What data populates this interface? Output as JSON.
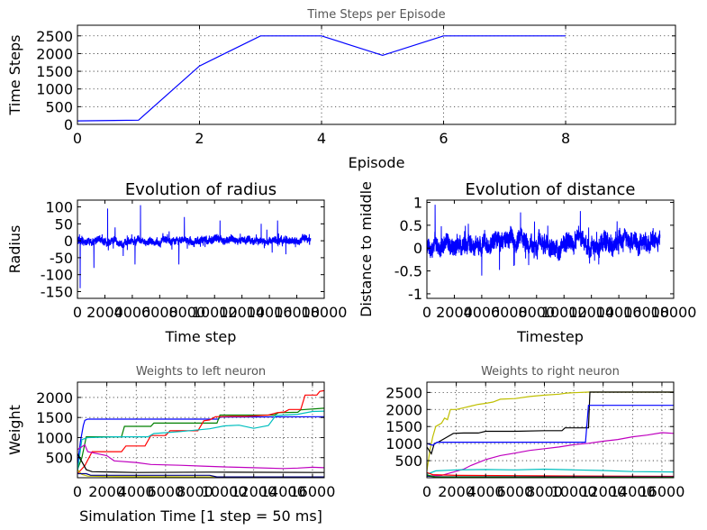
{
  "chart_data": [
    {
      "type": "line",
      "title": "Time Steps per Episode",
      "title_style": "small",
      "xlabel": "Episode",
      "ylabel": "Time Steps",
      "xlim": [
        0,
        9.8
      ],
      "ylim": [
        0,
        2800
      ],
      "xticks": [
        0,
        2,
        4,
        6,
        8
      ],
      "yticks": [
        0,
        500,
        1000,
        1500,
        2000,
        2500
      ],
      "grid": true,
      "series": [
        {
          "color": "#0000ff",
          "x": [
            0,
            1,
            2,
            3,
            4,
            5,
            6,
            7,
            8
          ],
          "y": [
            100,
            120,
            1650,
            2500,
            2500,
            1950,
            2500,
            2500,
            2500
          ]
        }
      ]
    },
    {
      "type": "line",
      "title": "Evolution of radius",
      "title_style": "big",
      "xlabel": "Time step",
      "ylabel": "Radius",
      "xlim": [
        0,
        18000
      ],
      "ylim": [
        -170,
        120
      ],
      "xticks": [
        0,
        2000,
        4000,
        6000,
        8000,
        10000,
        12000,
        14000,
        16000,
        18000
      ],
      "yticks": [
        -150,
        -100,
        -50,
        0,
        50,
        100
      ],
      "grid": false,
      "noise": {
        "color": "#0000ff",
        "n": 17000,
        "mean": 0,
        "amp": 14,
        "spikes": [
          [
            200,
            -140
          ],
          [
            1200,
            -80
          ],
          [
            2200,
            95
          ],
          [
            2700,
            -150
          ],
          [
            3900,
            110
          ],
          [
            4200,
            -70
          ],
          [
            4600,
            105
          ],
          [
            5500,
            80
          ],
          [
            5900,
            -60
          ],
          [
            7400,
            -70
          ],
          [
            7800,
            70
          ],
          [
            8500,
            -50
          ],
          [
            9100,
            45
          ],
          [
            9900,
            110
          ],
          [
            10400,
            60
          ],
          [
            11300,
            45
          ],
          [
            13100,
            -40
          ],
          [
            13400,
            50
          ],
          [
            14200,
            -35
          ],
          [
            14600,
            60
          ],
          [
            15200,
            -40
          ],
          [
            16300,
            -45
          ],
          [
            16700,
            -50
          ]
        ]
      }
    },
    {
      "type": "line",
      "title": "Evolution of distance",
      "title_style": "big",
      "xlabel": "Timestep",
      "ylabel": "Distance to middle",
      "xlim": [
        0,
        18000
      ],
      "ylim": [
        -1.1,
        1.05
      ],
      "xticks": [
        0,
        2000,
        4000,
        6000,
        8000,
        10000,
        12000,
        14000,
        16000,
        18000
      ],
      "yticks": [
        -1.0,
        -0.5,
        0.0,
        0.5,
        1.0
      ],
      "grid": false,
      "noise": {
        "color": "#0000ff",
        "n": 17000,
        "mean": 0.1,
        "amp": 0.25,
        "spikes": [
          [
            300,
            -1.0
          ],
          [
            600,
            0.95
          ],
          [
            900,
            0.7
          ],
          [
            1700,
            -0.4
          ],
          [
            3300,
            -0.5
          ],
          [
            4000,
            -0.6
          ],
          [
            5900,
            -0.8
          ],
          [
            6500,
            0.4
          ],
          [
            7500,
            -0.45
          ],
          [
            8900,
            -1.0
          ],
          [
            10300,
            0.5
          ],
          [
            11800,
            0.45
          ],
          [
            12700,
            -0.5
          ],
          [
            15200,
            0.3
          ]
        ]
      }
    },
    {
      "type": "line",
      "title": "Weights to left neuron",
      "title_style": "small",
      "xlabel": "Simulation Time [1 step = 50 ms]",
      "ylabel": "Weight",
      "xlim": [
        0,
        16800
      ],
      "ylim": [
        0,
        2380
      ],
      "xticks": [
        0,
        2000,
        4000,
        6000,
        8000,
        10000,
        12000,
        14000,
        16000
      ],
      "yticks": [
        500,
        1000,
        1500,
        2000
      ],
      "grid": true,
      "series": [
        {
          "color": "#0000ff",
          "x": [
            0,
            200,
            400,
            500,
            700,
            9600,
            9700,
            16800
          ],
          "y": [
            300,
            900,
            1300,
            1430,
            1460,
            1460,
            1510,
            1520
          ]
        },
        {
          "color": "#008000",
          "x": [
            0,
            300,
            600,
            3000,
            3200,
            5000,
            5200,
            9500,
            9700,
            13400,
            13700,
            15000,
            15200,
            16800
          ],
          "y": [
            200,
            500,
            1020,
            1020,
            1280,
            1280,
            1360,
            1360,
            1560,
            1560,
            1620,
            1630,
            1690,
            1730
          ]
        },
        {
          "color": "#ff0000",
          "x": [
            0,
            500,
            1000,
            3000,
            3300,
            4600,
            5000,
            6000,
            6300,
            8200,
            8600,
            9000,
            9400,
            10500,
            11500,
            13000,
            13600,
            14100,
            14400,
            15200,
            15500,
            16300,
            16500,
            16800
          ],
          "y": [
            100,
            300,
            650,
            650,
            790,
            790,
            1050,
            1050,
            1170,
            1170,
            1420,
            1440,
            1520,
            1530,
            1530,
            1560,
            1620,
            1640,
            1700,
            1700,
            2060,
            2060,
            2150,
            2170
          ]
        },
        {
          "color": "#00bfbf",
          "x": [
            0,
            300,
            700,
            2500,
            4800,
            5200,
            7000,
            9000,
            10000,
            11000,
            12000,
            13000,
            13500,
            15000,
            16000,
            16800
          ],
          "y": [
            150,
            950,
            1000,
            1020,
            1020,
            1100,
            1150,
            1220,
            1290,
            1310,
            1230,
            1300,
            1550,
            1580,
            1650,
            1660
          ]
        },
        {
          "color": "#bf00bf",
          "x": [
            0,
            500,
            700,
            2000,
            2500,
            4000,
            5000,
            7000,
            8500,
            10000,
            12000,
            14000,
            15000,
            16000,
            16800
          ],
          "y": [
            700,
            820,
            650,
            550,
            420,
            380,
            330,
            310,
            290,
            270,
            250,
            230,
            240,
            260,
            250
          ]
        },
        {
          "color": "#000000",
          "x": [
            0,
            300,
            600,
            1000,
            4000,
            9000,
            16800
          ],
          "y": [
            600,
            400,
            200,
            150,
            130,
            140,
            130
          ]
        },
        {
          "color": "#bfbf00",
          "x": [
            0,
            300,
            700,
            2000,
            9000,
            16800
          ],
          "y": [
            200,
            80,
            40,
            30,
            20,
            20
          ]
        },
        {
          "color": "#000080",
          "x": [
            0,
            600,
            900,
            9000,
            9500,
            16800
          ],
          "y": [
            100,
            100,
            60,
            60,
            20,
            20
          ]
        }
      ]
    },
    {
      "type": "line",
      "title": "Weights to right neuron",
      "title_style": "small",
      "xlabel": "",
      "ylabel": "",
      "xlim": [
        0,
        16800
      ],
      "ylim": [
        0,
        2800
      ],
      "xticks": [
        0,
        2000,
        4000,
        6000,
        8000,
        10000,
        12000,
        14000,
        16000
      ],
      "yticks": [
        500,
        1000,
        1500,
        2000,
        2500
      ],
      "grid": true,
      "series": [
        {
          "color": "#bfbf00",
          "x": [
            0,
            200,
            400,
            600,
            1000,
            1200,
            1400,
            1600,
            2000,
            2500,
            3000,
            3500,
            4000,
            4500,
            5000,
            6000,
            7000,
            8000,
            9000,
            9500,
            10000,
            11000,
            16800
          ],
          "y": [
            200,
            800,
            1200,
            1500,
            1600,
            1750,
            1700,
            2000,
            2000,
            2050,
            2100,
            2150,
            2180,
            2220,
            2300,
            2320,
            2380,
            2420,
            2450,
            2480,
            2490,
            2510,
            2510
          ]
        },
        {
          "color": "#000000",
          "x": [
            0,
            300,
            500,
            800,
            1200,
            1800,
            2500,
            3500,
            4000,
            6000,
            8000,
            9200,
            9400,
            11000,
            11100,
            16800
          ],
          "y": [
            900,
            700,
            1000,
            1050,
            1150,
            1300,
            1310,
            1310,
            1360,
            1360,
            1380,
            1380,
            1460,
            1460,
            2510,
            2510
          ]
        },
        {
          "color": "#0000ff",
          "x": [
            0,
            400,
            700,
            10800,
            11000,
            16800
          ],
          "y": [
            1000,
            950,
            1040,
            1040,
            2120,
            2120
          ]
        },
        {
          "color": "#bf00bf",
          "x": [
            0,
            1000,
            2500,
            3000,
            4000,
            5000,
            6000,
            7000,
            8000,
            9000,
            10000,
            11000,
            12000,
            13000,
            14000,
            15000,
            16000,
            16800
          ],
          "y": [
            50,
            70,
            250,
            360,
            530,
            650,
            720,
            800,
            850,
            900,
            970,
            1010,
            1070,
            1120,
            1200,
            1250,
            1320,
            1300
          ]
        },
        {
          "color": "#00bfbf",
          "x": [
            0,
            600,
            2000,
            4000,
            6000,
            8000,
            10000,
            12000,
            14000,
            16800
          ],
          "y": [
            100,
            200,
            230,
            240,
            230,
            250,
            230,
            210,
            180,
            170
          ]
        },
        {
          "color": "#ff0000",
          "x": [
            0,
            400,
            2000,
            6000,
            10000,
            16800
          ],
          "y": [
            150,
            90,
            70,
            60,
            50,
            40
          ]
        },
        {
          "color": "#000080",
          "x": [
            0,
            500,
            16800
          ],
          "y": [
            50,
            30,
            25
          ]
        },
        {
          "color": "#008000",
          "x": [
            0,
            600,
            16800
          ],
          "y": [
            80,
            20,
            10
          ]
        }
      ]
    }
  ]
}
